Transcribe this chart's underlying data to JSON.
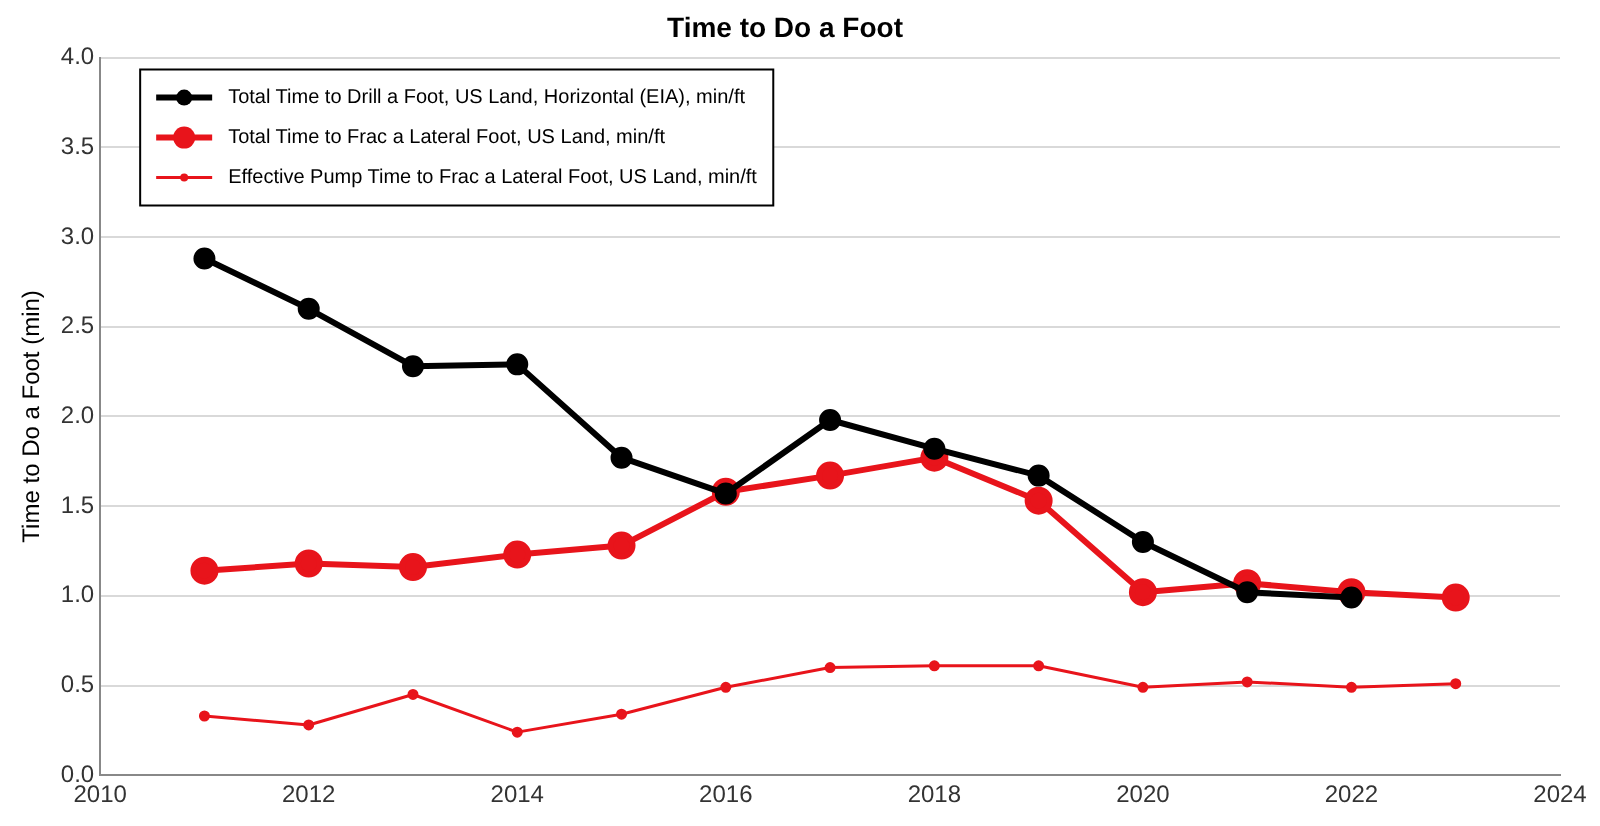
{
  "chart_data": {
    "type": "line",
    "title": "Time to Do a Foot",
    "ylabel": "Time to Do a Foot (min)",
    "xlim": [
      2010,
      2024
    ],
    "xticks": [
      2010,
      2012,
      2014,
      2016,
      2018,
      2020,
      2022,
      2024
    ],
    "ylim": [
      0,
      4
    ],
    "yticks": [
      {
        "value": 0,
        "label": "0.0"
      },
      {
        "value": 0.5,
        "label": "0.5"
      },
      {
        "value": 1,
        "label": "1.0"
      },
      {
        "value": 1.5,
        "label": "1.5"
      },
      {
        "value": 2,
        "label": "2.0"
      },
      {
        "value": 2.5,
        "label": "2.5"
      },
      {
        "value": 3,
        "label": "3.0"
      },
      {
        "value": 3.5,
        "label": "3.5"
      },
      {
        "value": 4,
        "label": "4.0"
      }
    ],
    "grid": "y",
    "legend": "top left",
    "marker": "circle",
    "line_style": "solid",
    "series": [
      {
        "name": "Total Time to Drill a Foot, US Land, Horizontal (EIA), min/ft",
        "color": "#000000",
        "x": [
          2011,
          2012,
          2013,
          2014,
          2015,
          2016,
          2017,
          2018,
          2019,
          2020,
          2021,
          2022
        ],
        "values": [
          2.88,
          2.6,
          2.28,
          2.29,
          1.77,
          1.57,
          1.98,
          1.82,
          1.67,
          1.3,
          1.02,
          0.99
        ]
      },
      {
        "name": "Total Time to Frac a Lateral Foot, US Land, min/ft",
        "color": "#e8141b",
        "x": [
          2011,
          2012,
          2013,
          2014,
          2015,
          2016,
          2017,
          2018,
          2019,
          2020,
          2021,
          2022,
          2023
        ],
        "values": [
          1.14,
          1.18,
          1.16,
          1.23,
          1.28,
          1.58,
          1.67,
          1.77,
          1.53,
          1.02,
          1.07,
          1.02,
          0.99
        ]
      },
      {
        "name": "Effective Pump Time to Frac a Lateral Foot, US Land, min/ft",
        "color": "#e8141b",
        "x": [
          2011,
          2012,
          2013,
          2014,
          2015,
          2016,
          2017,
          2018,
          2019,
          2020,
          2021,
          2022,
          2023
        ],
        "values": [
          0.33,
          0.28,
          0.45,
          0.24,
          0.34,
          0.49,
          0.6,
          0.61,
          0.61,
          0.49,
          0.52,
          0.49,
          0.51
        ]
      }
    ]
  }
}
